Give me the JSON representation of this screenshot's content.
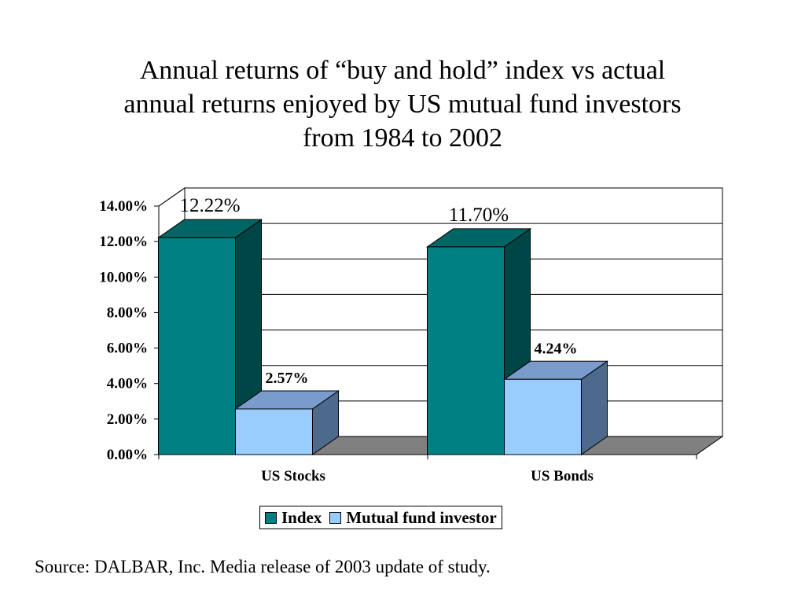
{
  "title_lines": [
    "Annual returns of “buy and hold” index vs actual",
    "annual returns enjoyed by US mutual fund investors",
    "from 1984 to 2002"
  ],
  "source": "Source: DALBAR, Inc. Media release of 2003 update of study.",
  "colors": {
    "index_front": "#008080",
    "index_side": "#004545",
    "index_top": "#006565",
    "mf_front": "#99ccff",
    "mf_side": "#4d6a8c",
    "mf_top": "#7a9ccc",
    "floor": "#808080"
  },
  "chart_data": {
    "type": "bar",
    "style": "3d-clustered",
    "categories": [
      "US Stocks",
      "US Bonds"
    ],
    "series": [
      {
        "name": "Index",
        "values": [
          12.22,
          11.7
        ],
        "labels": [
          "12.22%",
          "11.70%"
        ]
      },
      {
        "name": "Mutual fund investor",
        "values": [
          2.57,
          4.24
        ],
        "labels": [
          "2.57%",
          "4.24%"
        ]
      }
    ],
    "ylim": [
      0,
      14
    ],
    "yticks": [
      0,
      2,
      4,
      6,
      8,
      10,
      12,
      14
    ],
    "ytick_labels": [
      "0.00%",
      "2.00%",
      "4.00%",
      "6.00%",
      "8.00%",
      "10.00%",
      "12.00%",
      "14.00%"
    ],
    "grid": true,
    "legend_position": "bottom"
  }
}
